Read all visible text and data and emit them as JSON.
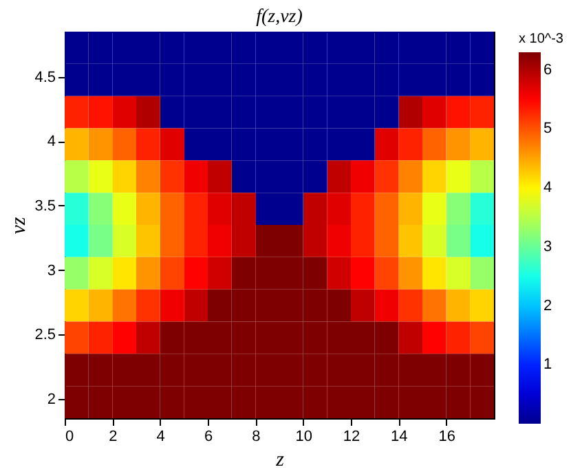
{
  "chart_data": {
    "type": "heatmap",
    "title": "f(z,vz)",
    "xlabel": "z",
    "ylabel": "vz",
    "clabel": "x 10^-3",
    "x": [
      0.5,
      1.5,
      2.5,
      3.5,
      4.5,
      5.5,
      6.5,
      7.5,
      8.5,
      9.5,
      10.5,
      11.5,
      12.5,
      13.5,
      14.5,
      15.5,
      16.5,
      17.5
    ],
    "y": [
      4.725,
      4.475,
      4.225,
      3.975,
      3.725,
      3.475,
      3.225,
      2.975,
      2.725,
      2.475,
      2.225,
      1.975
    ],
    "xlim": [
      0,
      18
    ],
    "xticks": [
      0,
      2,
      4,
      6,
      8,
      10,
      12,
      14,
      16
    ],
    "ylim": [
      1.85,
      4.85
    ],
    "yticks": [
      2,
      2.5,
      3,
      3.5,
      4,
      4.5
    ],
    "clim": [
      0,
      6.3
    ],
    "cticks": [
      1,
      2,
      3,
      4,
      5,
      6
    ],
    "cells": [
      [
        0,
        0,
        0,
        0,
        0,
        0,
        0,
        0,
        0,
        0,
        0,
        0,
        0,
        0,
        0,
        0,
        0,
        0
      ],
      [
        0,
        0,
        0,
        0,
        0,
        0,
        0,
        0,
        0,
        0,
        0,
        0,
        0,
        0,
        0,
        0,
        0,
        0
      ],
      [
        5.3,
        5.4,
        5.7,
        6.0,
        0,
        0,
        0,
        0,
        0,
        0,
        0,
        0,
        0,
        0,
        6.0,
        5.7,
        5.4,
        5.3
      ],
      [
        4.4,
        4.6,
        4.9,
        5.3,
        5.7,
        0,
        0,
        0,
        0,
        0,
        0,
        0,
        0,
        5.7,
        5.3,
        4.9,
        4.6,
        4.4
      ],
      [
        3.5,
        3.8,
        4.2,
        4.7,
        5.2,
        5.6,
        5.9,
        0,
        0,
        0,
        0,
        5.9,
        5.6,
        5.2,
        4.7,
        4.2,
        3.8,
        3.5
      ],
      [
        2.6,
        3.2,
        3.8,
        4.4,
        4.9,
        5.3,
        5.7,
        5.9,
        0,
        0,
        5.9,
        5.7,
        5.3,
        4.9,
        4.4,
        3.8,
        3.2,
        2.6
      ],
      [
        2.5,
        3.1,
        3.7,
        4.3,
        4.9,
        5.3,
        5.6,
        5.9,
        6.3,
        6.3,
        5.9,
        5.6,
        5.3,
        4.9,
        4.3,
        3.7,
        3.1,
        2.5
      ],
      [
        3.3,
        3.7,
        4.1,
        4.6,
        5.1,
        5.5,
        5.8,
        6.3,
        6.3,
        6.3,
        6.3,
        5.8,
        5.5,
        5.1,
        4.6,
        4.1,
        3.7,
        3.3
      ],
      [
        4.2,
        4.4,
        4.8,
        5.2,
        5.6,
        5.9,
        6.3,
        6.3,
        6.3,
        6.3,
        6.3,
        6.3,
        5.9,
        5.6,
        5.2,
        4.8,
        4.4,
        4.2
      ],
      [
        5.1,
        5.3,
        5.5,
        5.9,
        6.3,
        6.3,
        6.3,
        6.3,
        6.3,
        6.3,
        6.3,
        6.3,
        6.3,
        6.3,
        5.9,
        5.5,
        5.3,
        5.1
      ],
      [
        6.3,
        6.3,
        6.3,
        6.3,
        6.3,
        6.3,
        6.3,
        6.3,
        6.3,
        6.3,
        6.3,
        6.3,
        6.3,
        6.3,
        6.3,
        6.3,
        6.3,
        6.3
      ],
      [
        6.3,
        6.3,
        6.3,
        6.3,
        6.3,
        6.3,
        6.3,
        6.3,
        6.3,
        6.3,
        6.3,
        6.3,
        6.3,
        6.3,
        6.3,
        6.3,
        6.3,
        6.3
      ]
    ]
  }
}
